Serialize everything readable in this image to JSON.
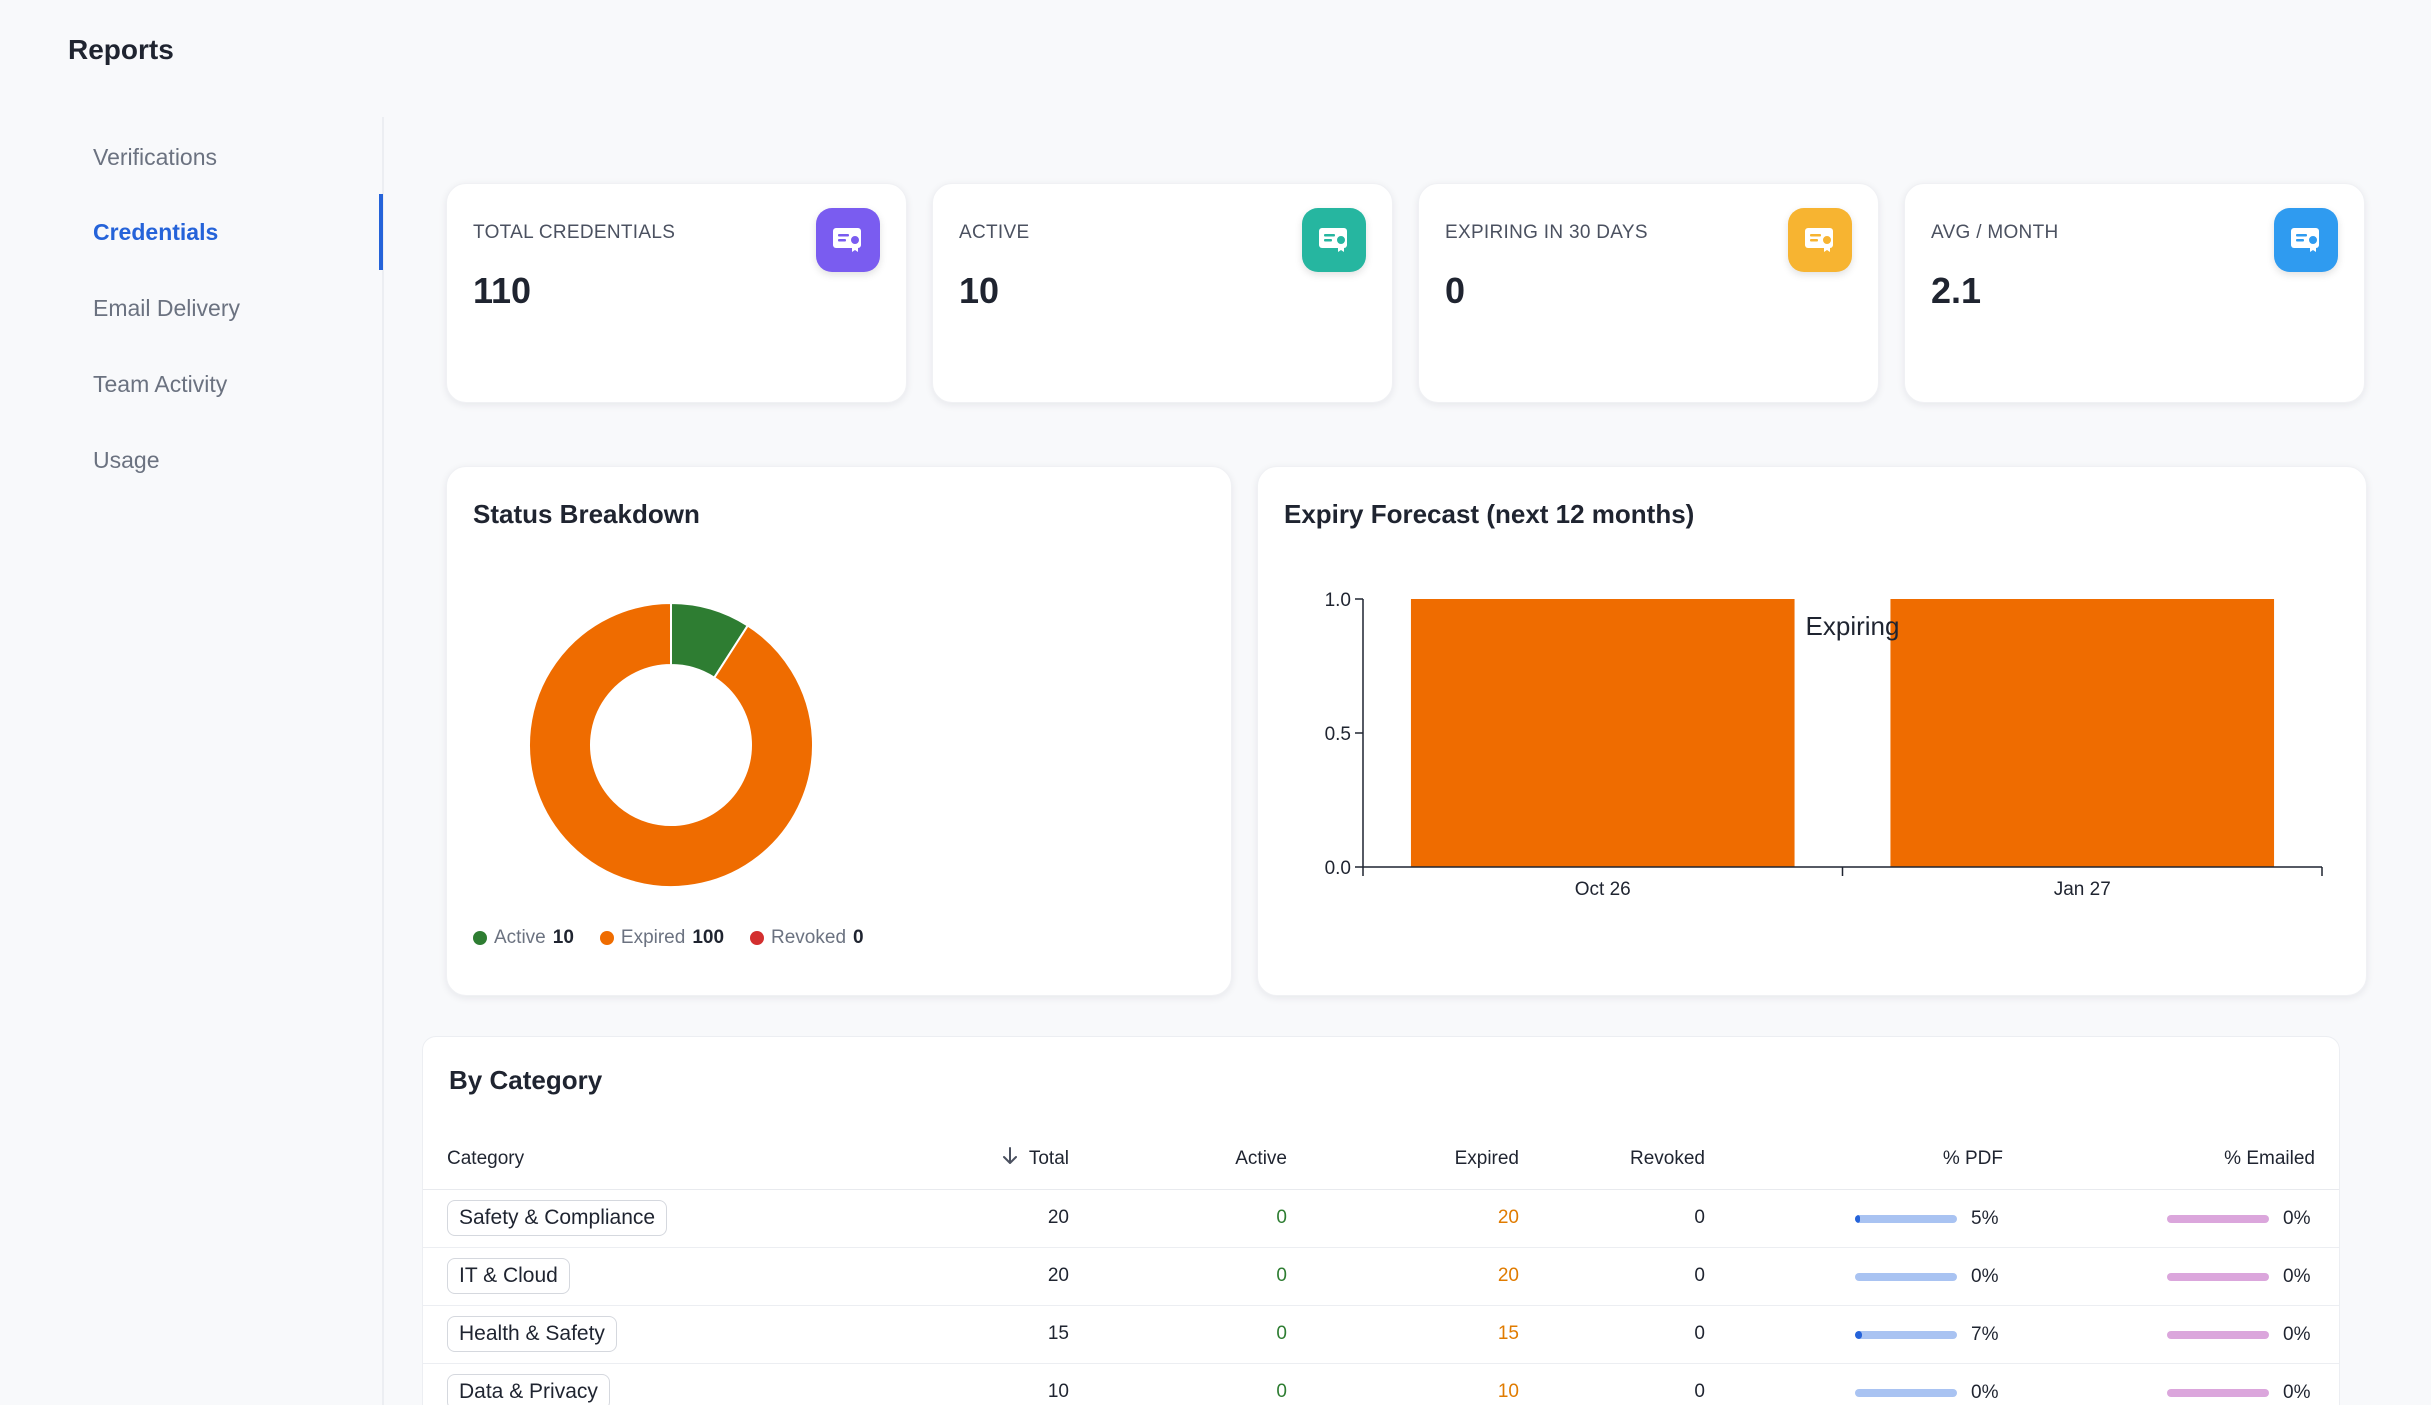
{
  "page": {
    "title": "Reports"
  },
  "sidebar": {
    "items": [
      {
        "label": "Verifications",
        "active": false
      },
      {
        "label": "Credentials",
        "active": true
      },
      {
        "label": "Email Delivery",
        "active": false
      },
      {
        "label": "Team Activity",
        "active": false
      },
      {
        "label": "Usage",
        "active": false
      }
    ]
  },
  "stats": [
    {
      "label": "TOTAL CREDENTIALS",
      "value": "110",
      "icon": "certificate-icon",
      "color": "#7a5cf0"
    },
    {
      "label": "ACTIVE",
      "value": "10",
      "icon": "certificate-icon",
      "color": "#26b6a0"
    },
    {
      "label": "EXPIRING IN 30 DAYS",
      "value": "0",
      "icon": "certificate-icon",
      "color": "#f7b431"
    },
    {
      "label": "AVG / MONTH",
      "value": "2.1",
      "icon": "certificate-icon",
      "color": "#2f9bf0"
    }
  ],
  "status_breakdown": {
    "title": "Status Breakdown",
    "legend": [
      {
        "label": "Active",
        "count": "10",
        "color": "#2e7d32"
      },
      {
        "label": "Expired",
        "count": "100",
        "color": "#ef6c00"
      },
      {
        "label": "Revoked",
        "count": "0",
        "color": "#d32f2f"
      }
    ]
  },
  "expiry_forecast": {
    "title": "Expiry Forecast (next 12 months)",
    "series_label": "Expiring"
  },
  "chart_data": [
    {
      "type": "pie",
      "title": "Status Breakdown",
      "categories": [
        "Active",
        "Expired",
        "Revoked"
      ],
      "values": [
        10,
        100,
        0
      ],
      "colors": [
        "#2e7d32",
        "#ef6c00",
        "#d32f2f"
      ],
      "donut": true
    },
    {
      "type": "bar",
      "title": "Expiry Forecast (next 12 months)",
      "categories": [
        "Oct 26",
        "Jan 27"
      ],
      "series": [
        {
          "name": "Expiring",
          "values": [
            1,
            1
          ],
          "color": "#ef6c00"
        }
      ],
      "ylim": [
        0,
        1
      ],
      "yticks": [
        "0.0",
        "0.5",
        "1.0"
      ],
      "grid": false
    }
  ],
  "category_table": {
    "title": "By Category",
    "columns": [
      "Category",
      "Total",
      "Active",
      "Expired",
      "Revoked",
      "% PDF",
      "% Emailed"
    ],
    "sort_icon": "arrow-down-icon",
    "rows": [
      {
        "category": "Safety & Compliance",
        "total": "20",
        "active": "0",
        "expired": "20",
        "revoked": "0",
        "pdf": "5%",
        "pdf_frac": 0.05,
        "emailed": "0%",
        "emailed_frac": 0
      },
      {
        "category": "IT & Cloud",
        "total": "20",
        "active": "0",
        "expired": "20",
        "revoked": "0",
        "pdf": "0%",
        "pdf_frac": 0,
        "emailed": "0%",
        "emailed_frac": 0
      },
      {
        "category": "Health & Safety",
        "total": "15",
        "active": "0",
        "expired": "15",
        "revoked": "0",
        "pdf": "7%",
        "pdf_frac": 0.07,
        "emailed": "0%",
        "emailed_frac": 0
      },
      {
        "category": "Data & Privacy",
        "total": "10",
        "active": "0",
        "expired": "10",
        "revoked": "0",
        "pdf": "0%",
        "pdf_frac": 0,
        "emailed": "0%",
        "emailed_frac": 0
      }
    ],
    "bar_colors": {
      "pdf_track": "#a9c3f2",
      "pdf_fill": "#2563d9",
      "emailed_track": "#dba6dc",
      "emailed_fill": "#a43fa8"
    }
  }
}
